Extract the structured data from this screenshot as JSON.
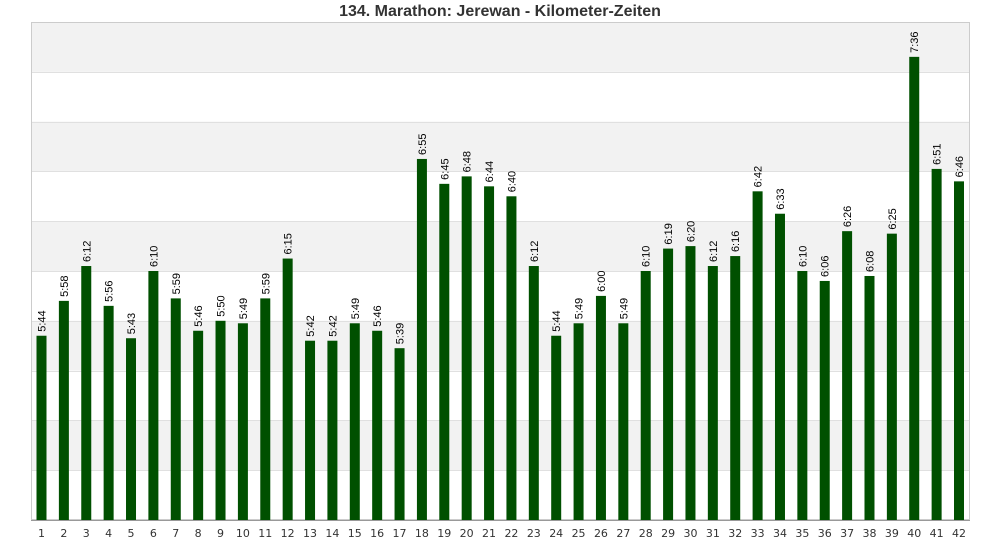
{
  "chart_data": {
    "type": "bar",
    "title": "134. Marathon: Jerewan - Kilometer-Zeiten",
    "xlabel": "",
    "ylabel": "",
    "categories": [
      "1",
      "2",
      "3",
      "4",
      "5",
      "6",
      "7",
      "8",
      "9",
      "10",
      "11",
      "12",
      "13",
      "14",
      "15",
      "16",
      "17",
      "18",
      "19",
      "20",
      "21",
      "22",
      "23",
      "24",
      "25",
      "26",
      "27",
      "28",
      "29",
      "30",
      "31",
      "32",
      "33",
      "34",
      "35",
      "36",
      "37",
      "38",
      "39",
      "40",
      "41",
      "42"
    ],
    "values": [
      344,
      358,
      372,
      356,
      343,
      370,
      359,
      346,
      350,
      349,
      359,
      375,
      342,
      342,
      349,
      346,
      339,
      415,
      405,
      408,
      404,
      400,
      372,
      344,
      349,
      360,
      349,
      370,
      379,
      380,
      372,
      376,
      402,
      393,
      370,
      366,
      386,
      368,
      385,
      456,
      411,
      406
    ],
    "value_labels": [
      "5:44",
      "5:58",
      "6:12",
      "5:56",
      "5:43",
      "6:10",
      "5:59",
      "5:46",
      "5:50",
      "5:49",
      "5:59",
      "6:15",
      "5:42",
      "5:42",
      "5:49",
      "5:46",
      "5:39",
      "6:55",
      "6:45",
      "6:48",
      "6:44",
      "6:40",
      "6:12",
      "5:44",
      "5:49",
      "6:00",
      "5:49",
      "6:10",
      "6:19",
      "6:20",
      "6:12",
      "6:16",
      "6:42",
      "6:33",
      "6:10",
      "6:06",
      "6:26",
      "6:08",
      "6:25",
      "7:36",
      "6:51",
      "6:46"
    ],
    "value_unit": "seconds per kilometer",
    "ylim": [
      270,
      470
    ],
    "y_gridlines": [
      270,
      290,
      310,
      330,
      350,
      370,
      390,
      410,
      430,
      450,
      470
    ],
    "y_tick_labels_shown": false,
    "grid": true,
    "alternating_bands": true,
    "bar_color": "#005000",
    "band_color": "#f2f2f2",
    "grid_color": "#e0e0e0",
    "legend": "none"
  }
}
